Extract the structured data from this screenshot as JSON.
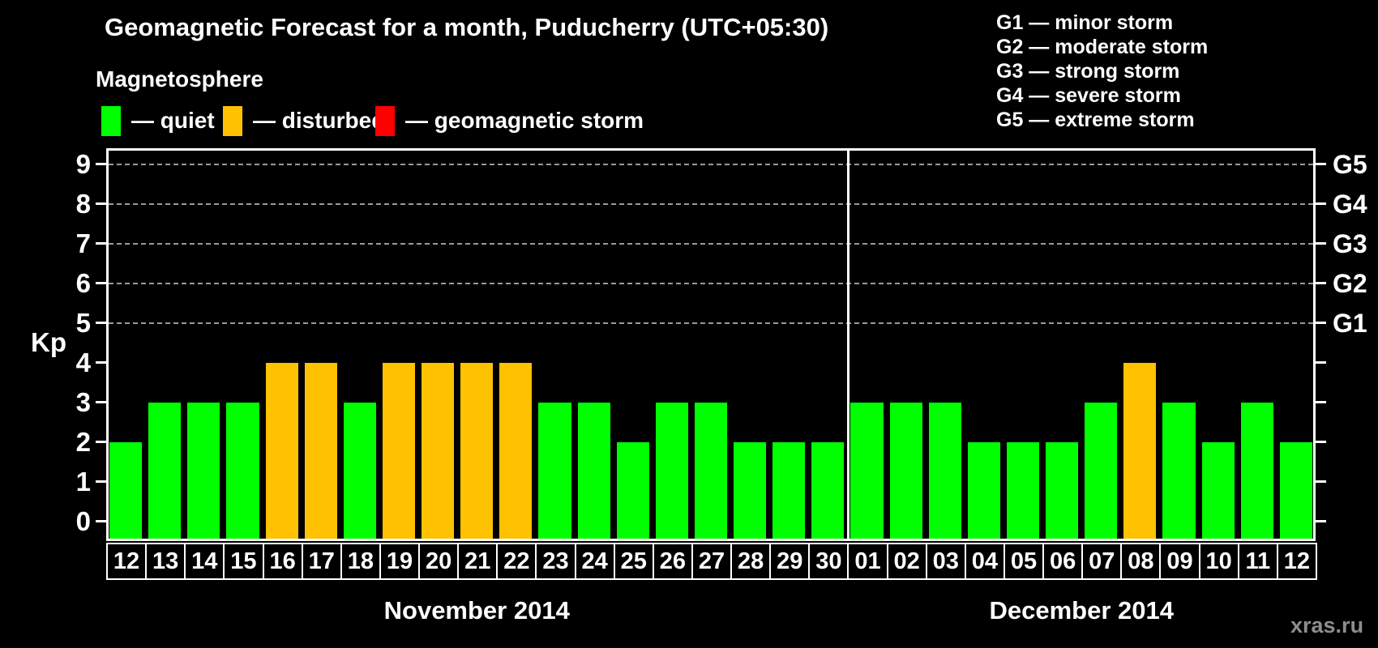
{
  "header": {
    "watermark": "xras.ru"
  },
  "legend": {
    "heading": "Magnetosphere",
    "items": [
      {
        "key": "quiet",
        "label": "— quiet",
        "color": "#00ff00"
      },
      {
        "key": "disturbed",
        "label": "— disturbed",
        "color": "#ffc200"
      },
      {
        "key": "storm",
        "label": "— geomagnetic storm",
        "color": "#ff0000"
      }
    ]
  },
  "g_legend": [
    "G1 — minor storm",
    "G2 — moderate storm",
    "G3 — strong storm",
    "G4 — severe storm",
    "G5 — extreme storm"
  ],
  "chart_data": {
    "type": "bar",
    "title": "Geomagnetic Forecast for a month, Puducherry (UTC+05:30)",
    "ylabel": "Kp",
    "ylim": [
      -0.5,
      9.4
    ],
    "yticks": [
      0,
      1,
      2,
      3,
      4,
      5,
      6,
      7,
      8,
      9
    ],
    "gridlines": [
      5,
      6,
      7,
      8,
      9
    ],
    "grid_style": "horizontal dashed gray at Kp 5–9",
    "right_axis": [
      {
        "kp": 5,
        "label": "G1"
      },
      {
        "kp": 6,
        "label": "G2"
      },
      {
        "kp": 7,
        "label": "G3"
      },
      {
        "kp": 8,
        "label": "G4"
      },
      {
        "kp": 9,
        "label": "G5"
      }
    ],
    "legend_position": "top-left",
    "months": [
      {
        "label": "November 2014",
        "days": [
          "12",
          "13",
          "14",
          "15",
          "16",
          "17",
          "18",
          "19",
          "20",
          "21",
          "22",
          "23",
          "24",
          "25",
          "26",
          "27",
          "28",
          "29",
          "30"
        ],
        "values": [
          2,
          3,
          3,
          3,
          4,
          4,
          3,
          4,
          4,
          4,
          4,
          3,
          3,
          2,
          3,
          3,
          2,
          2,
          2
        ],
        "states": [
          "quiet",
          "quiet",
          "quiet",
          "quiet",
          "disturbed",
          "disturbed",
          "quiet",
          "disturbed",
          "disturbed",
          "disturbed",
          "disturbed",
          "quiet",
          "quiet",
          "quiet",
          "quiet",
          "quiet",
          "quiet",
          "quiet",
          "quiet"
        ]
      },
      {
        "label": "December 2014",
        "days": [
          "01",
          "02",
          "03",
          "04",
          "05",
          "06",
          "07",
          "08",
          "09",
          "10",
          "11",
          "12"
        ],
        "values": [
          3,
          3,
          3,
          2,
          2,
          2,
          3,
          4,
          3,
          2,
          3,
          2
        ],
        "states": [
          "quiet",
          "quiet",
          "quiet",
          "quiet",
          "quiet",
          "quiet",
          "quiet",
          "disturbed",
          "quiet",
          "quiet",
          "quiet",
          "quiet"
        ]
      }
    ]
  }
}
